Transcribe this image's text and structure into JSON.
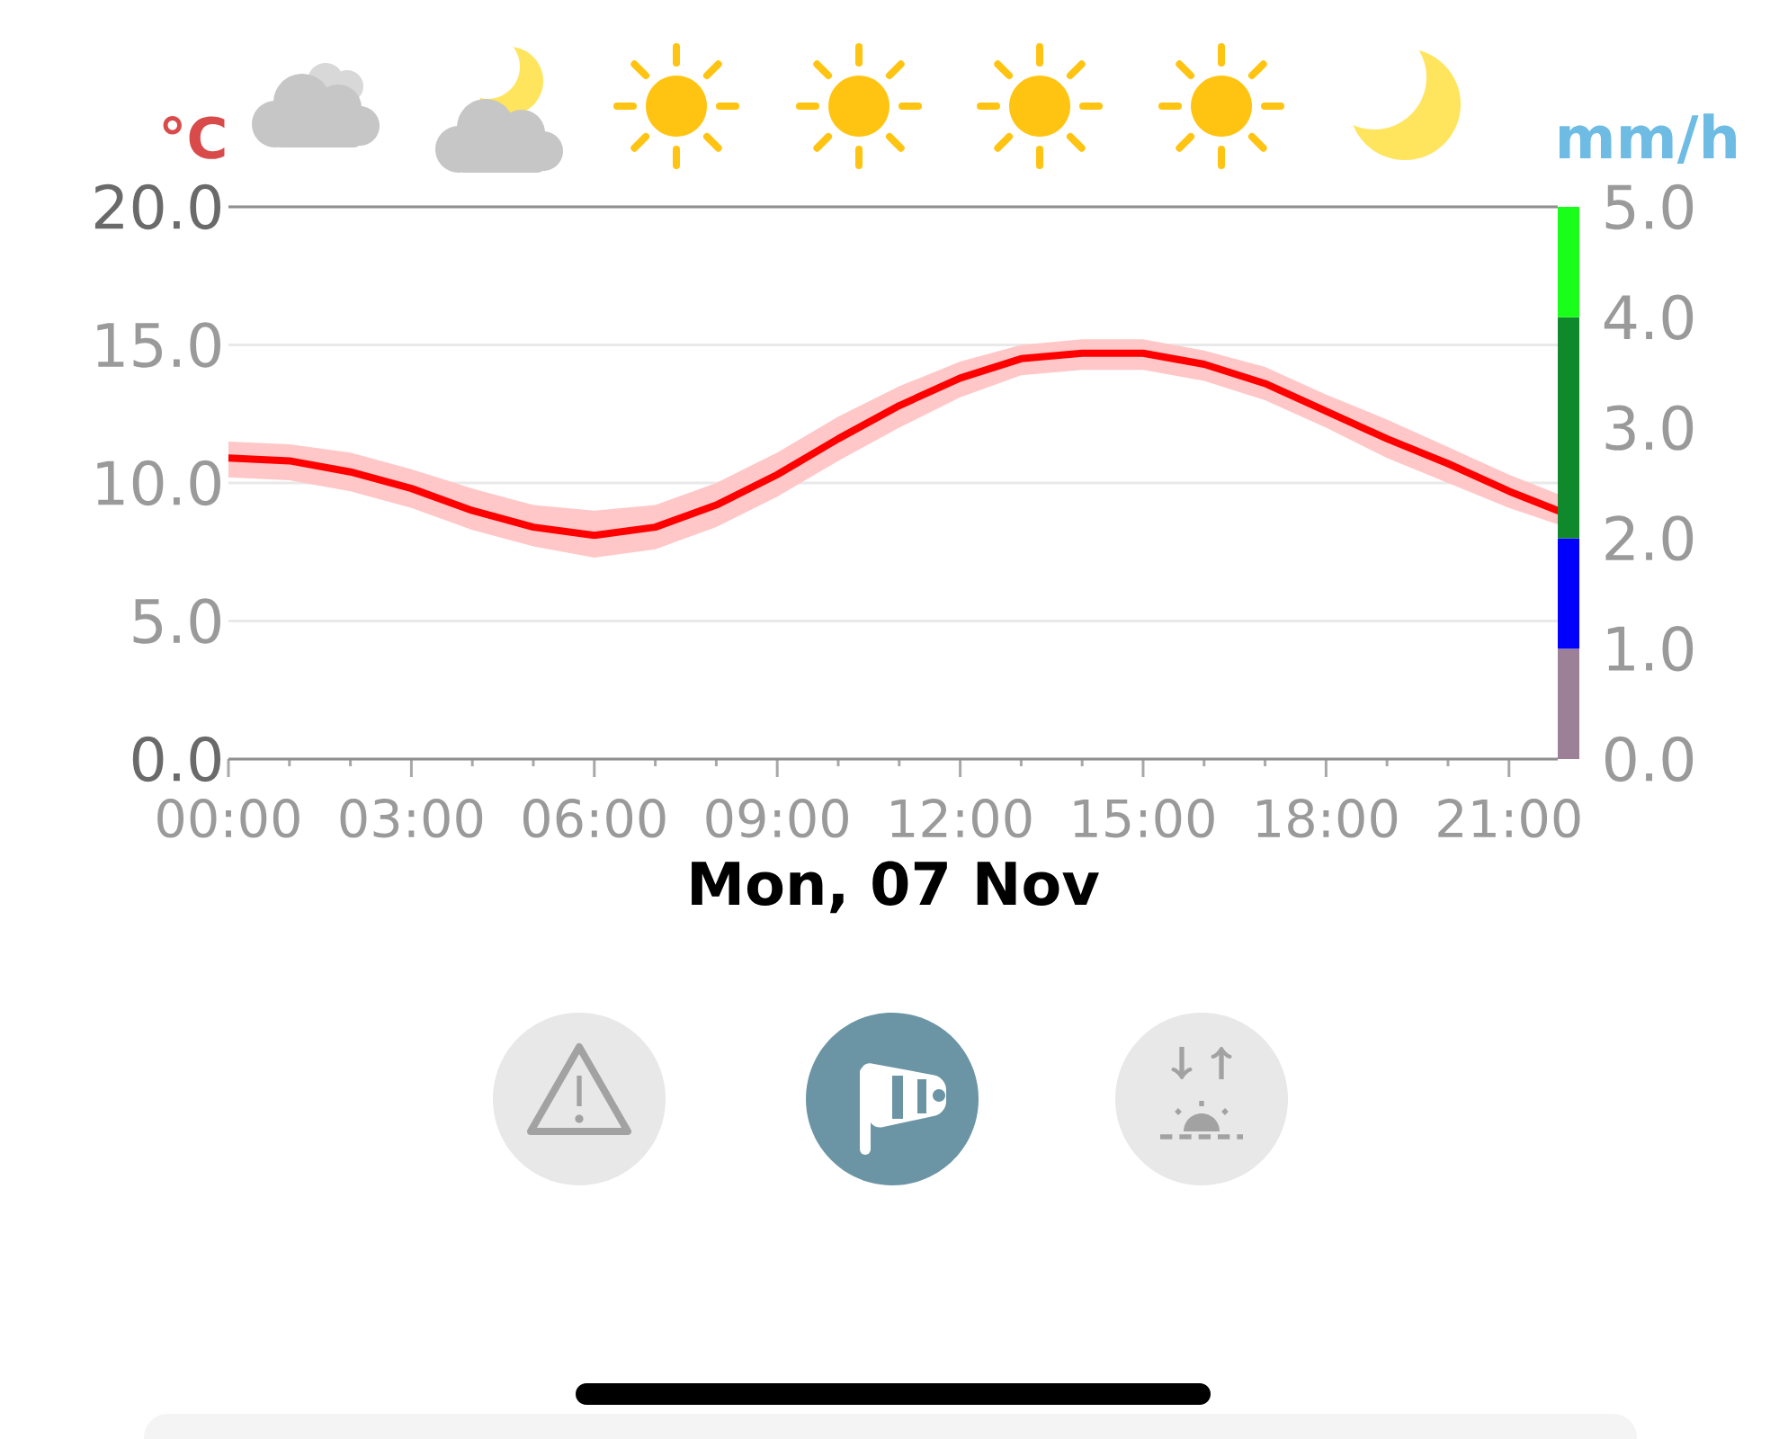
{
  "chart_data": {
    "type": "line",
    "xlabel": "Mon, 07 Nov",
    "ylabel": "°C",
    "y2label": "mm/h",
    "x": [
      0,
      1,
      2,
      3,
      4,
      5,
      6,
      7,
      8,
      9,
      10,
      11,
      12,
      13,
      14,
      15,
      16,
      17,
      18,
      19,
      20,
      21,
      21.8
    ],
    "series": [
      {
        "color": "#ff0000",
        "values": [
          10.9,
          10.8,
          10.4,
          9.8,
          9.0,
          8.4,
          8.1,
          8.4,
          9.2,
          10.3,
          11.6,
          12.8,
          13.8,
          14.5,
          14.7,
          14.7,
          14.3,
          13.6,
          12.6,
          11.6,
          10.7,
          9.7,
          9.0
        ],
        "lower": [
          10.2,
          10.1,
          9.7,
          9.1,
          8.3,
          7.7,
          7.3,
          7.6,
          8.4,
          9.5,
          10.8,
          12.0,
          13.1,
          13.9,
          14.1,
          14.1,
          13.7,
          13.0,
          12.0,
          10.9,
          10.0,
          9.1,
          8.5
        ],
        "upper": [
          11.5,
          11.4,
          11.1,
          10.5,
          9.8,
          9.2,
          9.0,
          9.2,
          10.0,
          11.1,
          12.4,
          13.5,
          14.4,
          15.0,
          15.2,
          15.2,
          14.8,
          14.2,
          13.2,
          12.3,
          11.3,
          10.3,
          9.6
        ]
      }
    ],
    "xlim": [
      0,
      21.8
    ],
    "xticks": [
      {
        "value": 0,
        "label": "00:00"
      },
      {
        "value": 3,
        "label": "03:00"
      },
      {
        "value": 6,
        "label": "06:00"
      },
      {
        "value": 9,
        "label": "09:00"
      },
      {
        "value": 12,
        "label": "12:00"
      },
      {
        "value": 15,
        "label": "15:00"
      },
      {
        "value": 18,
        "label": "18:00"
      },
      {
        "value": 21,
        "label": "21:00"
      }
    ],
    "ylim": [
      0,
      20
    ],
    "yticks": [
      {
        "value": 0,
        "label": "0.0"
      },
      {
        "value": 5,
        "label": "5.0"
      },
      {
        "value": 10,
        "label": "10.0"
      },
      {
        "value": 15,
        "label": "15.0"
      },
      {
        "value": 20,
        "label": "20.0"
      }
    ],
    "y2lim": [
      0,
      5
    ],
    "y2ticks": [
      {
        "value": 0,
        "label": "0.0"
      },
      {
        "value": 1,
        "label": "1.0"
      },
      {
        "value": 2,
        "label": "2.0"
      },
      {
        "value": 3,
        "label": "3.0"
      },
      {
        "value": 4,
        "label": "4.0"
      },
      {
        "value": 5,
        "label": "5.0"
      }
    ],
    "grid": "y"
  }
}
